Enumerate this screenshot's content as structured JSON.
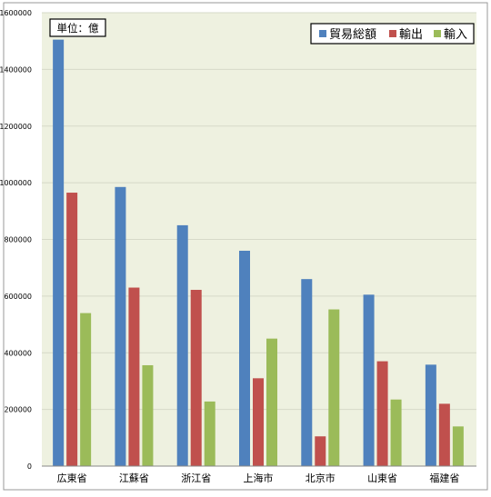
{
  "chart_data": {
    "type": "bar",
    "unit_label": "単位：億",
    "categories": [
      "広東省",
      "江蘇省",
      "浙江省",
      "上海市",
      "北京市",
      "山東省",
      "福建省"
    ],
    "series": [
      {
        "name": "貿易総額",
        "color": "#4F81BD",
        "values": [
          1505000,
          985000,
          850000,
          760000,
          660000,
          605000,
          358000
        ]
      },
      {
        "name": "輸出",
        "color": "#C0504D",
        "values": [
          965000,
          630000,
          622000,
          310000,
          105000,
          370000,
          220000
        ]
      },
      {
        "name": "輸入",
        "color": "#9BBB59",
        "values": [
          540000,
          356000,
          228000,
          450000,
          553000,
          235000,
          140000
        ]
      }
    ],
    "ylim": [
      0,
      1600000
    ],
    "yticks": [
      0,
      200000,
      400000,
      600000,
      800000,
      1000000,
      1200000,
      1400000,
      1600000
    ],
    "grid": true,
    "legend_position": "top-right",
    "plot_background": "#EEF1E0"
  }
}
